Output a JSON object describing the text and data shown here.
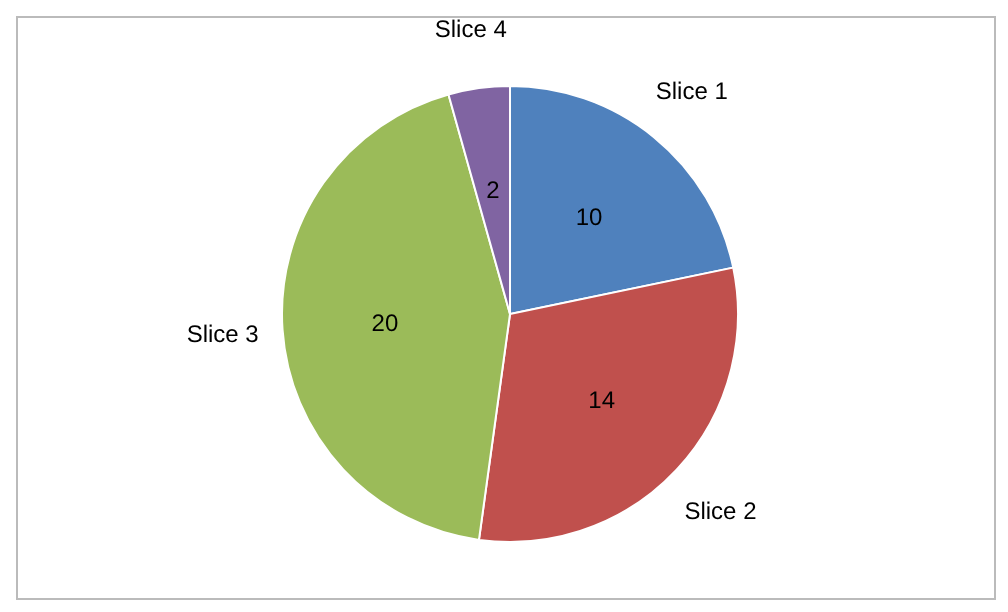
{
  "chart_data": {
    "type": "pie",
    "categories": [
      "Slice 1",
      "Slice 2",
      "Slice 3",
      "Slice 4"
    ],
    "values": [
      10,
      14,
      20,
      2
    ],
    "colors": [
      "#4f81bd",
      "#c0504d",
      "#9bbb59",
      "#8064a2"
    ],
    "data_labels": true
  }
}
